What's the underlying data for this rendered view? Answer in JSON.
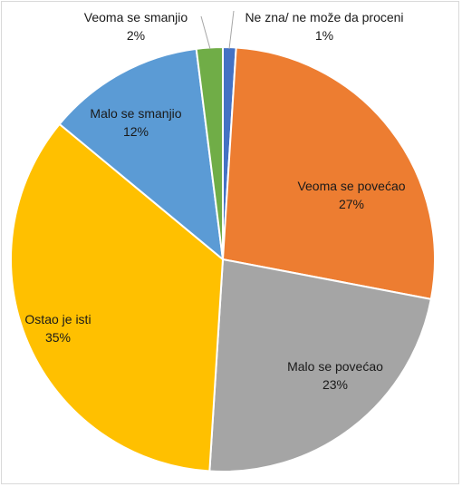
{
  "chart_data": {
    "type": "pie",
    "title": "",
    "start_angle_deg": 0,
    "direction": "clockwise",
    "slices": [
      {
        "label": "Ne zna/ ne može da proceni",
        "value": 1,
        "value_label": "1%",
        "color": "#4472C4"
      },
      {
        "label": "Veoma se povećao",
        "value": 27,
        "value_label": "27%",
        "color": "#ED7D31"
      },
      {
        "label": "Malo se povećao",
        "value": 23,
        "value_label": "23%",
        "color": "#A5A5A5"
      },
      {
        "label": "Ostao je isti",
        "value": 35,
        "value_label": "35%",
        "color": "#FFC000"
      },
      {
        "label": "Malo se smanjio",
        "value": 12,
        "value_label": "12%",
        "color": "#5B9BD5"
      },
      {
        "label": "Veoma se smanjio",
        "value": 2,
        "value_label": "2%",
        "color": "#70AD47"
      }
    ],
    "legend": "none",
    "data_labels": "category-and-percent"
  }
}
